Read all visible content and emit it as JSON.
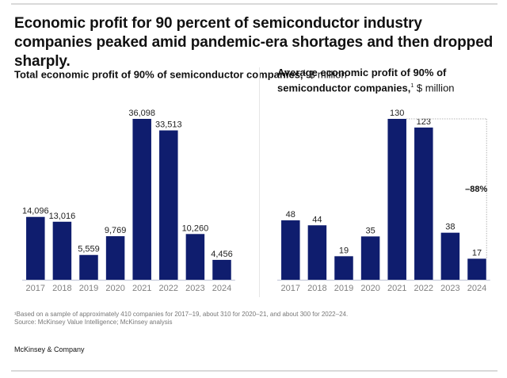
{
  "title": "Economic profit for 90 percent of semiconductor industry companies peaked amid pandemic-era shortages and then dropped sharply.",
  "footnote_line1": "¹Based on a sample of approximately 410 companies for 2017–19, about 310 for 2020–21, and about 300 for 2022–24.",
  "footnote_line2": "Source: McKinsey Value Intelligence; McKinsey analysis",
  "brand": "McKinsey & Company",
  "colors": {
    "bar": "#0f1d6e",
    "axis": "#bfc4d6",
    "tick": "#808080"
  },
  "chart_data": [
    {
      "type": "bar",
      "title_bold": "Total economic profit of 90% of semiconductor companies,",
      "title_sup": "1",
      "title_unit": " $ million",
      "xlabel": "",
      "ylabel": "$ million",
      "categories": [
        "2017",
        "2018",
        "2019",
        "2020",
        "2021",
        "2022",
        "2023",
        "2024"
      ],
      "values": [
        14096,
        13016,
        5559,
        9769,
        36098,
        33513,
        10260,
        4456
      ],
      "labels": [
        "14,096",
        "13,016",
        "5,559",
        "9,769",
        "36,098",
        "33,513",
        "10,260",
        "4,456"
      ],
      "ylim": [
        0,
        36098
      ],
      "grid": false
    },
    {
      "type": "bar",
      "title_bold": "Average economic profit of 90% of semiconductor companies,",
      "title_sup": "1",
      "title_unit": " $ million",
      "xlabel": "",
      "ylabel": "$ million",
      "categories": [
        "2017",
        "2018",
        "2019",
        "2020",
        "2021",
        "2022",
        "2023",
        "2024"
      ],
      "values": [
        48,
        44,
        19,
        35,
        130,
        123,
        38,
        17
      ],
      "labels": [
        "48",
        "44",
        "19",
        "35",
        "130",
        "123",
        "38",
        "17"
      ],
      "ylim": [
        0,
        130
      ],
      "grid": false,
      "annotation": {
        "text": "–88%",
        "from": "2021",
        "to": "2024"
      }
    }
  ]
}
